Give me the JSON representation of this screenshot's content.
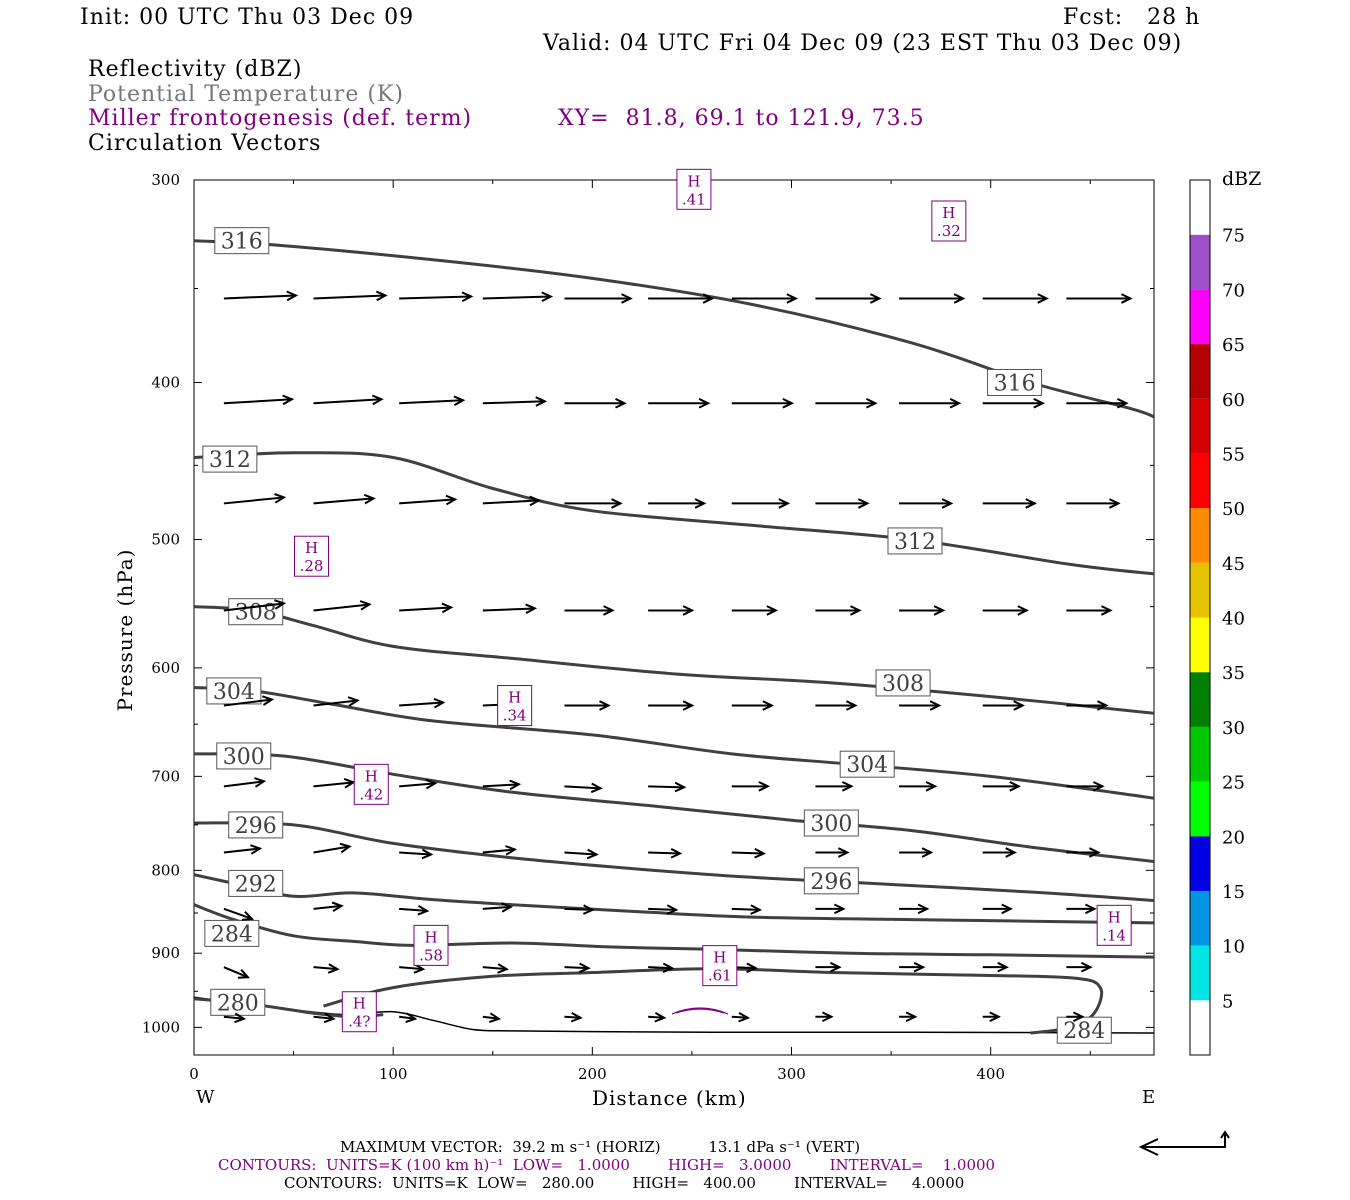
{
  "header": {
    "init": "Init: 00 UTC Thu 03 Dec 09",
    "fcst": "Fcst:   28 h",
    "valid": "Valid: 04 UTC Fri 04 Dec 09 (23 EST Thu 03 Dec 09)",
    "field1": "Reflectivity (dBZ)",
    "field2": "Potential Temperature (K)",
    "field3": "Miller frontogenesis (def. term)",
    "xy": "XY=  81.8, 69.1 to 121.9, 73.5",
    "field4": "Circulation Vectors"
  },
  "footer": {
    "max_vector": "MAXIMUM VECTOR:  39.2 m s⁻¹ (HORIZ)          13.1 dPa s⁻¹ (VERT)",
    "contours1": "CONTOURS:  UNITS=K (100 km h)⁻¹  LOW=   1.0000        HIGH=   3.0000        INTERVAL=    1.0000",
    "contours2": "CONTOURS:  UNITS=K  LOW=   280.00        HIGH=   400.00        INTERVAL=     4.0000"
  },
  "colors": {
    "theta": "#404040",
    "frontogenesis": "#800080",
    "vector": "#000000"
  },
  "legend": {
    "unit": "dBZ",
    "levels": [
      "5",
      "10",
      "15",
      "20",
      "25",
      "30",
      "35",
      "40",
      "45",
      "50",
      "55",
      "60",
      "65",
      "70",
      "75"
    ],
    "colors": [
      "#ffffff",
      "#00e5e5",
      "#0096e5",
      "#0000e5",
      "#00ff00",
      "#00c800",
      "#008000",
      "#ffff00",
      "#e6c300",
      "#ff8c00",
      "#ff0000",
      "#d50000",
      "#b40000",
      "#ff00ff",
      "#9b50c8",
      "#ffffff"
    ]
  },
  "chart_data": {
    "type": "cross-section",
    "xlabel": "Distance (km)",
    "ylabel": "Pressure (hPa)",
    "xlim": [
      0,
      482
    ],
    "ylim": [
      1040,
      300
    ],
    "y_log": true,
    "x_ticks": [
      0,
      100,
      200,
      300,
      400
    ],
    "y_ticks": [
      300,
      400,
      500,
      600,
      700,
      800,
      900,
      1000
    ],
    "x_end_labels": {
      "left": "W",
      "right": "E"
    },
    "theta_contours": [
      {
        "label": "316",
        "points": [
          [
            0,
            327
          ],
          [
            40,
            329
          ],
          [
            120,
            336
          ],
          [
            200,
            345
          ],
          [
            280,
            358
          ],
          [
            360,
            378
          ],
          [
            420,
            400
          ],
          [
            470,
            415
          ],
          [
            482,
            420
          ]
        ],
        "label_at": [
          24,
          327
        ],
        "extra_labels": [
          [
            412,
            400
          ]
        ]
      },
      {
        "label": "312",
        "points": [
          [
            0,
            445
          ],
          [
            50,
            442
          ],
          [
            100,
            445
          ],
          [
            150,
            465
          ],
          [
            200,
            480
          ],
          [
            280,
            490
          ],
          [
            360,
            500
          ],
          [
            440,
            518
          ],
          [
            482,
            525
          ]
        ],
        "label_at": [
          18,
          446
        ],
        "extra_labels": [
          [
            362,
            501
          ]
        ]
      },
      {
        "label": "308",
        "points": [
          [
            0,
            550
          ],
          [
            30,
            553
          ],
          [
            60,
            565
          ],
          [
            100,
            582
          ],
          [
            160,
            592
          ],
          [
            240,
            605
          ],
          [
            320,
            613
          ],
          [
            400,
            625
          ],
          [
            482,
            640
          ]
        ],
        "label_at": [
          31,
          554
        ],
        "extra_labels": [
          [
            356,
            613
          ]
        ]
      },
      {
        "label": "304",
        "points": [
          [
            0,
            617
          ],
          [
            30,
            620
          ],
          [
            70,
            632
          ],
          [
            120,
            647
          ],
          [
            200,
            660
          ],
          [
            270,
            678
          ],
          [
            330,
            688
          ],
          [
            400,
            700
          ],
          [
            482,
            722
          ]
        ],
        "label_at": [
          20,
          620
        ],
        "extra_labels": [
          [
            338,
            688
          ]
        ]
      },
      {
        "label": "300",
        "points": [
          [
            0,
            678
          ],
          [
            45,
            680
          ],
          [
            100,
            698
          ],
          [
            160,
            716
          ],
          [
            230,
            730
          ],
          [
            300,
            745
          ],
          [
            360,
            756
          ],
          [
            420,
            774
          ],
          [
            482,
            790
          ]
        ],
        "label_at": [
          25,
          680
        ],
        "extra_labels": [
          [
            320,
            748
          ]
        ]
      },
      {
        "label": "296",
        "points": [
          [
            0,
            748
          ],
          [
            50,
            750
          ],
          [
            100,
            770
          ],
          [
            160,
            786
          ],
          [
            220,
            798
          ],
          [
            280,
            808
          ],
          [
            340,
            815
          ],
          [
            420,
            825
          ],
          [
            482,
            835
          ]
        ],
        "label_at": [
          31,
          750
        ],
        "extra_labels": [
          [
            320,
            812
          ]
        ]
      },
      {
        "label": "292",
        "points": [
          [
            0,
            805
          ],
          [
            20,
            815
          ],
          [
            50,
            830
          ],
          [
            80,
            826
          ],
          [
            120,
            834
          ],
          [
            160,
            840
          ],
          [
            220,
            848
          ],
          [
            280,
            855
          ],
          [
            360,
            858
          ],
          [
            420,
            860
          ],
          [
            482,
            862
          ]
        ],
        "label_at": [
          31,
          815
        ],
        "extra_labels": []
      },
      {
        "label": "284",
        "points": [
          [
            0,
            840
          ],
          [
            20,
            858
          ],
          [
            50,
            878
          ],
          [
            80,
            885
          ],
          [
            110,
            890
          ],
          [
            160,
            887
          ],
          [
            210,
            892
          ],
          [
            260,
            895
          ],
          [
            330,
            900
          ],
          [
            400,
            902
          ],
          [
            482,
            905
          ]
        ],
        "label_at": [
          19,
          875
        ],
        "extra_labels": []
      },
      {
        "label": "280",
        "points": [
          [
            0,
            960
          ],
          [
            30,
            968
          ],
          [
            60,
            980
          ],
          [
            80,
            985
          ],
          [
            95,
            982
          ]
        ],
        "label_at": [
          22,
          965
        ],
        "extra_labels": []
      },
      {
        "label": "284b",
        "points": [
          [
            65,
            970
          ],
          [
            100,
            945
          ],
          [
            150,
            930
          ],
          [
            200,
            925
          ],
          [
            260,
            920
          ],
          [
            320,
            925
          ],
          [
            380,
            928
          ],
          [
            440,
            932
          ],
          [
            455,
            945
          ],
          [
            452,
            980
          ],
          [
            440,
            1000
          ],
          [
            420,
            1008
          ]
        ],
        "label_at": null,
        "extra_labels": [
          [
            447,
            1004
          ]
        ]
      }
    ],
    "terrain_line": [
      [
        0,
        958
      ],
      [
        40,
        972
      ],
      [
        75,
        982
      ],
      [
        100,
        978
      ],
      [
        120,
        990
      ],
      [
        140,
        1003
      ],
      [
        160,
        1005
      ],
      [
        200,
        1006
      ],
      [
        260,
        1007
      ],
      [
        360,
        1007
      ],
      [
        482,
        1008
      ]
    ],
    "terrain_labels": [],
    "front_maxima": [
      {
        "label": ".41",
        "x": 251,
        "p": 304
      },
      {
        "label": ".32",
        "x": 379,
        "p": 318
      },
      {
        "label": ".28",
        "x": 59,
        "p": 512
      },
      {
        "label": ".34",
        "x": 161,
        "p": 633
      },
      {
        "label": ".42",
        "x": 89,
        "p": 708
      },
      {
        "label": ".14",
        "x": 462,
        "p": 865
      },
      {
        "label": ".58",
        "x": 119,
        "p": 890
      },
      {
        "label": ".61",
        "x": 264,
        "p": 916
      },
      {
        "label": ".4?",
        "x": 83,
        "p": 978
      }
    ],
    "vector_levels": [
      355,
      412,
      475,
      553,
      633,
      710,
      780,
      845,
      918,
      985
    ],
    "vector_x": [
      15,
      60,
      103,
      145,
      186,
      228,
      270,
      312,
      354,
      396,
      438,
      478
    ],
    "vector_dx": [
      [
        36,
        36,
        36,
        34,
        33,
        32,
        32,
        32,
        32,
        32,
        32,
        30
      ],
      [
        34,
        34,
        32,
        31,
        30,
        30,
        30,
        30,
        30,
        30,
        30,
        28
      ],
      [
        30,
        30,
        28,
        28,
        28,
        28,
        28,
        26,
        26,
        26,
        26,
        24
      ],
      [
        30,
        28,
        26,
        26,
        24,
        22,
        22,
        22,
        22,
        22,
        22,
        20
      ],
      [
        24,
        22,
        22,
        22,
        22,
        22,
        20,
        20,
        20,
        20,
        20,
        18
      ],
      [
        20,
        20,
        18,
        18,
        18,
        18,
        18,
        18,
        18,
        18,
        18,
        18
      ],
      [
        18,
        18,
        16,
        16,
        16,
        16,
        16,
        16,
        16,
        16,
        16,
        16
      ],
      [
        14,
        14,
        14,
        14,
        14,
        14,
        14,
        14,
        14,
        14,
        14,
        14
      ],
      [
        12,
        12,
        12,
        12,
        12,
        12,
        12,
        12,
        12,
        12,
        12,
        12
      ],
      [
        10,
        10,
        8,
        8,
        8,
        8,
        8,
        8,
        8,
        8,
        8,
        8
      ]
    ],
    "vector_dp": [
      [
        -3,
        -3,
        -2,
        -2,
        0,
        0,
        0,
        0,
        0,
        0,
        0,
        0
      ],
      [
        -4,
        -4,
        -3,
        -2,
        0,
        0,
        0,
        0,
        0,
        0,
        0,
        0
      ],
      [
        -6,
        -5,
        -4,
        -3,
        0,
        0,
        0,
        0,
        0,
        0,
        0,
        0
      ],
      [
        -7,
        -6,
        -3,
        -2,
        0,
        0,
        0,
        0,
        0,
        0,
        0,
        0
      ],
      [
        -6,
        -5,
        -3,
        -2,
        0,
        0,
        0,
        0,
        0,
        0,
        0,
        0
      ],
      [
        -5,
        -4,
        -3,
        -2,
        2,
        1,
        0,
        0,
        0,
        0,
        0,
        0
      ],
      [
        -4,
        -6,
        2,
        -3,
        2,
        1,
        1,
        0,
        0,
        0,
        0,
        0
      ],
      [
        10,
        -3,
        2,
        -2,
        1,
        1,
        1,
        0,
        0,
        0,
        0,
        0
      ],
      [
        10,
        2,
        2,
        2,
        1,
        1,
        1,
        0,
        0,
        0,
        0,
        0
      ],
      [
        2,
        2,
        2,
        2,
        1,
        1,
        1,
        0,
        0,
        0,
        0,
        0
      ]
    ]
  }
}
